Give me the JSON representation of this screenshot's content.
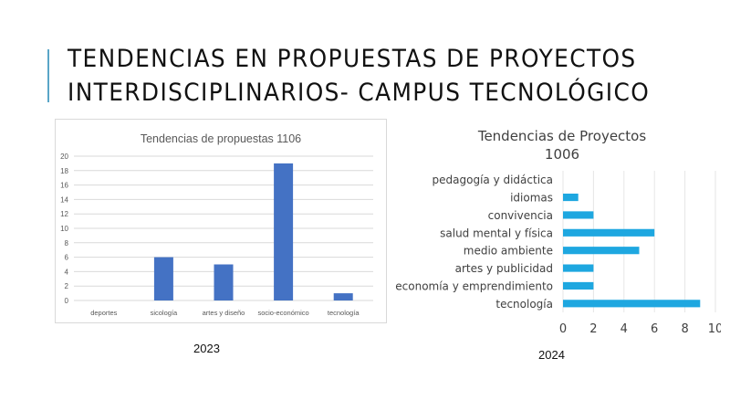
{
  "slide": {
    "title_line1": "TENDENCIAS EN PROPUESTAS DE PROYECTOS",
    "title_line2": "INTERDISCIPLINARIOS- CAMPUS TECNOLÓGICO",
    "accent_color": "#5aa6c8"
  },
  "captions": {
    "left_year": "2023",
    "right_year": "2024"
  },
  "chart_data": [
    {
      "type": "bar",
      "title": "Tendencias de propuestas 1106",
      "categories": [
        "deportes",
        "sicología",
        "artes y diseño",
        "socio-económico",
        "tecnología"
      ],
      "values": [
        0,
        6,
        5,
        19,
        1
      ],
      "ylim": [
        0,
        20
      ],
      "yticks": [
        0,
        2,
        4,
        6,
        8,
        10,
        12,
        14,
        16,
        18,
        20
      ],
      "grid": true,
      "legend": "none",
      "color": "#4472c4"
    },
    {
      "type": "bar",
      "orientation": "horizontal",
      "title_line1": "Tendencias de Proyectos",
      "title_line2": "1006",
      "categories": [
        "pedagogía y didáctica",
        "idiomas",
        "convivencia",
        "salud mental y física",
        "medio ambiente",
        "artes y publicidad",
        "economía y emprendimiento",
        "tecnología"
      ],
      "values": [
        0,
        1,
        2,
        6,
        5,
        2,
        2,
        9
      ],
      "xlim": [
        0,
        10
      ],
      "xticks": [
        0,
        2,
        4,
        6,
        8,
        10
      ],
      "grid": true,
      "legend": "none",
      "color": "#1ea7e0"
    }
  ]
}
